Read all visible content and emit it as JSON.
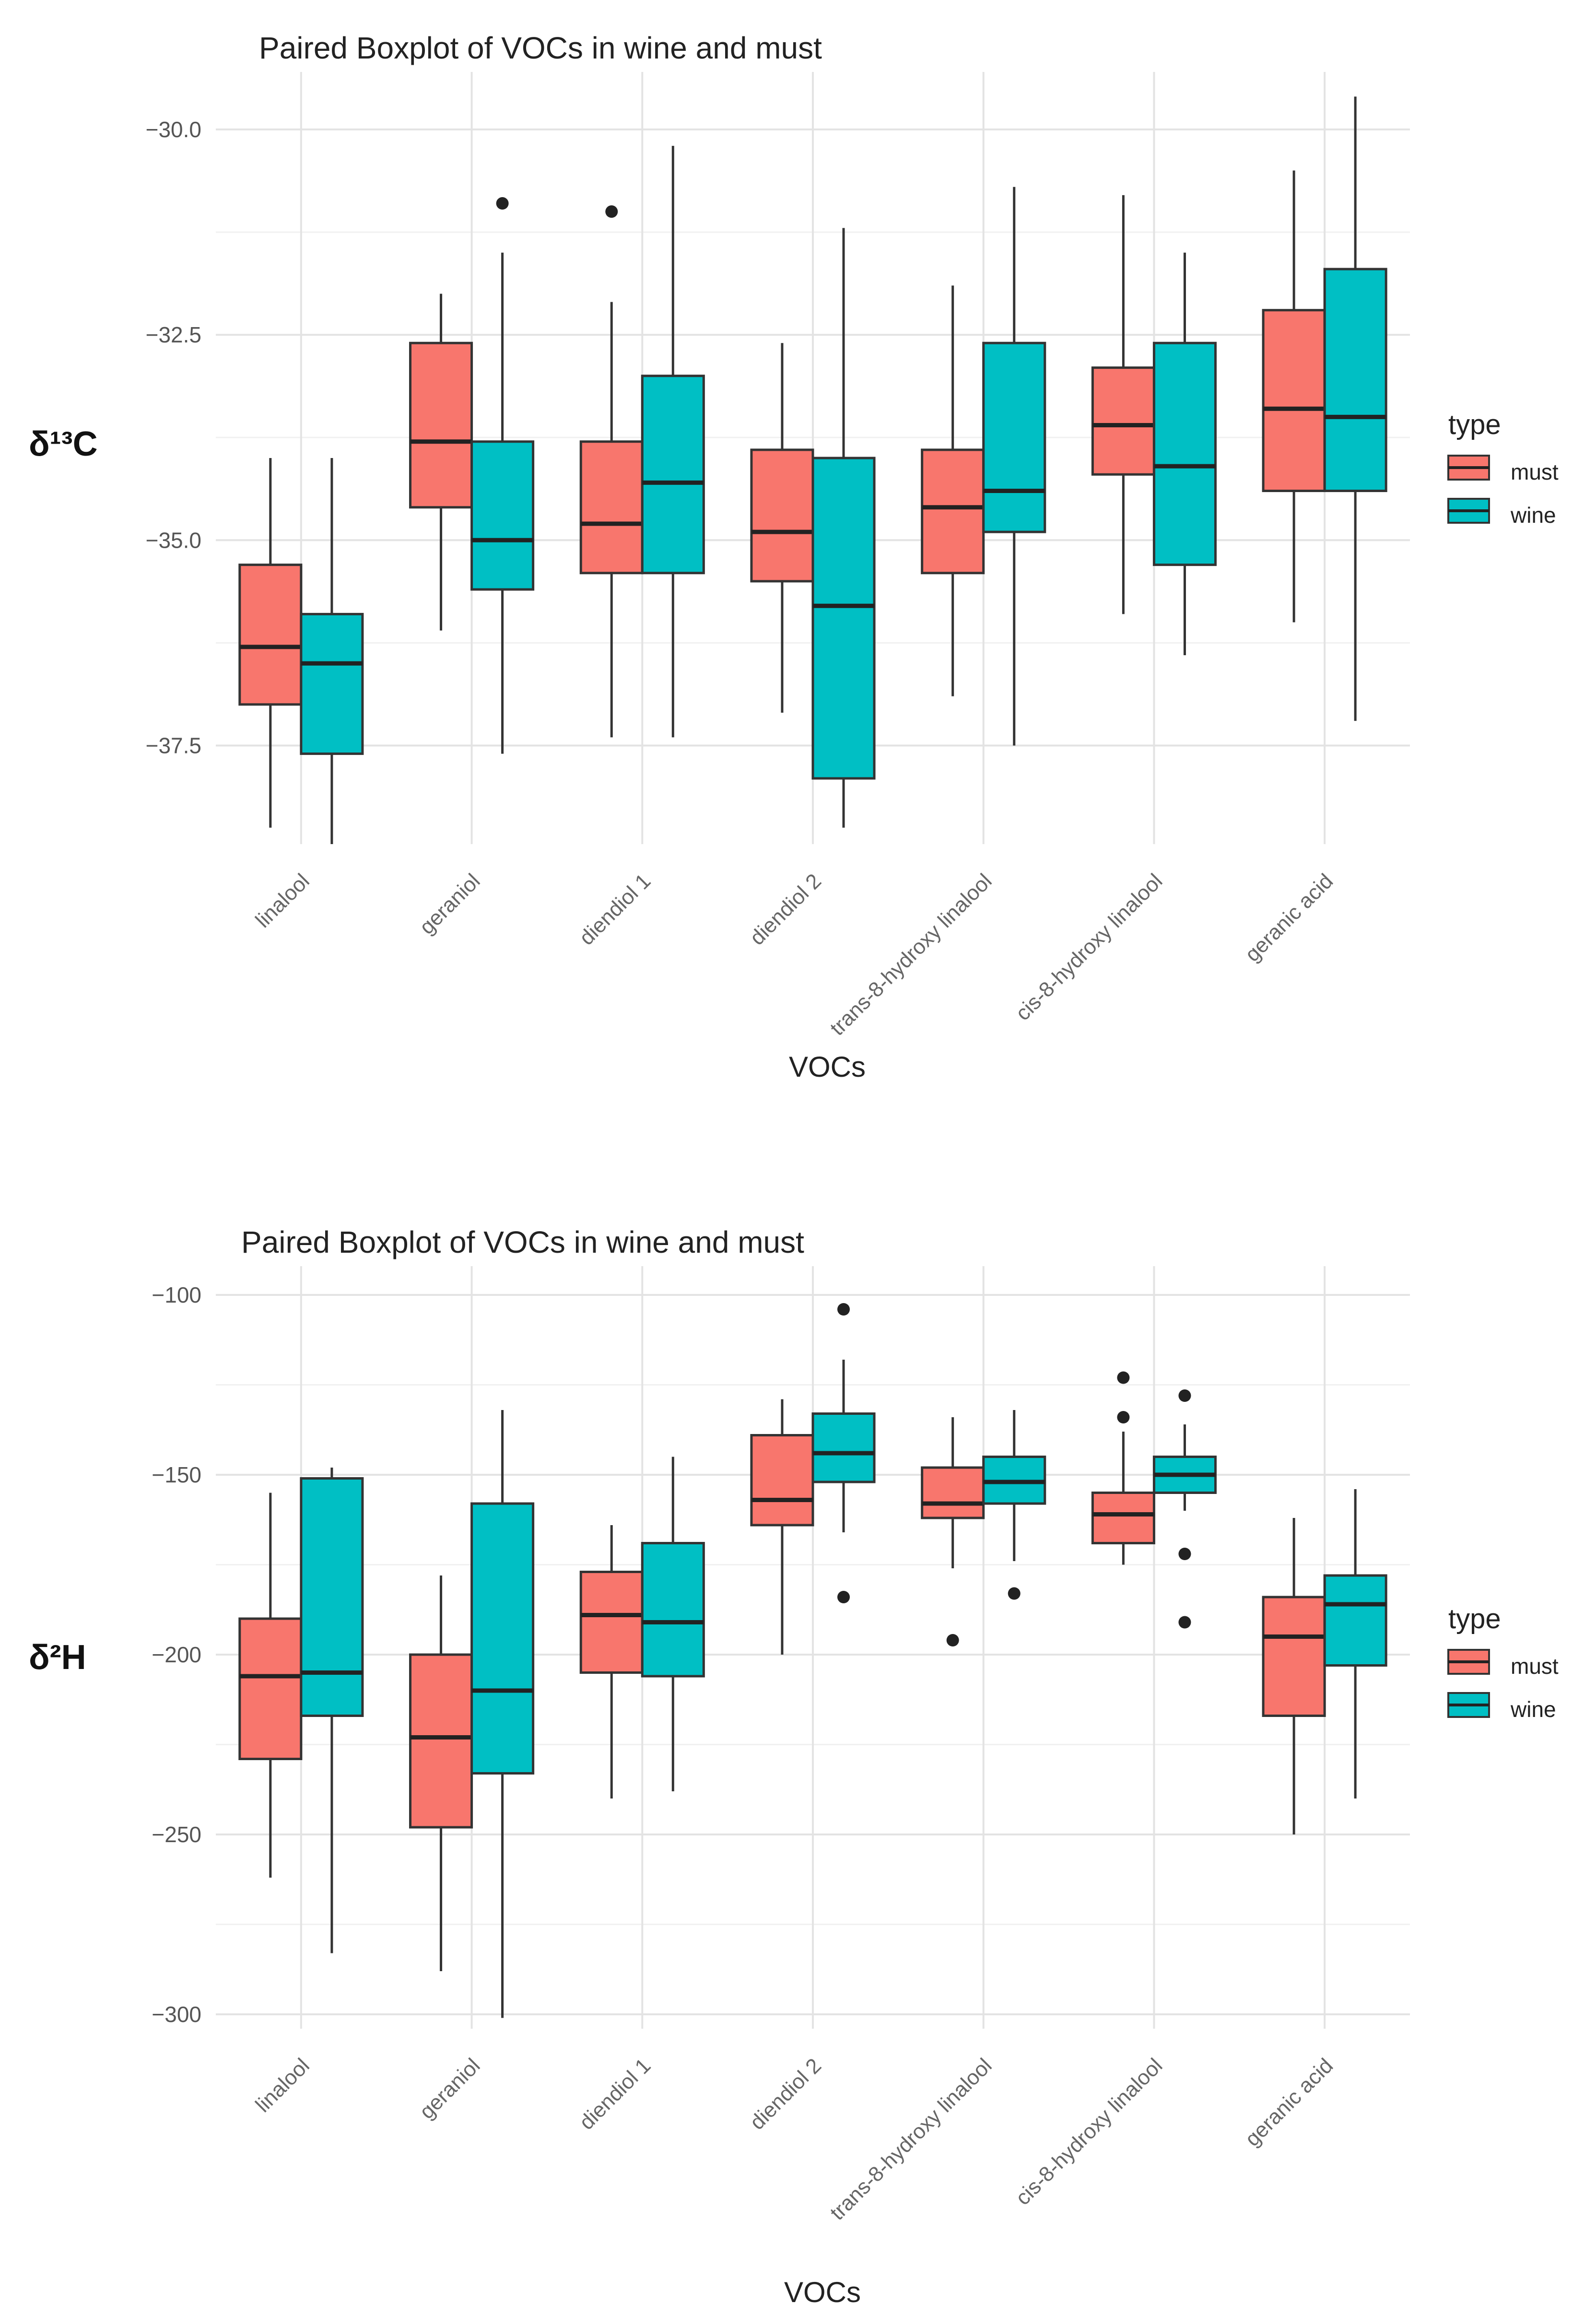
{
  "chart_data": [
    {
      "type": "boxplot",
      "title": "Paired Boxplot of VOCs in wine and must",
      "xlabel": "VOCs",
      "ylabel": "δ¹³C",
      "ylim": [
        -38.7,
        -29.3
      ],
      "yticks": [
        -30.0,
        -32.5,
        -35.0,
        -37.5
      ],
      "ytick_labels": [
        "−30.0",
        "−32.5",
        "−35.0",
        "−37.5"
      ],
      "categories": [
        "linalool",
        "geraniol",
        "diendiol 1",
        "diendiol 2",
        "trans-8-hydroxy linalool",
        "cis-8-hydroxy linalool",
        "geranic acid"
      ],
      "legend": {
        "title": "type",
        "entries": [
          "must",
          "wine"
        ],
        "position": "right"
      },
      "series": [
        {
          "name": "must",
          "color": "#F8766D",
          "boxes": [
            {
              "min": -38.5,
              "q1": -37.0,
              "median": -36.3,
              "q3": -35.3,
              "max": -34.0,
              "outliers": []
            },
            {
              "min": -36.1,
              "q1": -34.6,
              "median": -33.8,
              "q3": -32.6,
              "max": -32.0,
              "outliers": []
            },
            {
              "min": -37.4,
              "q1": -35.4,
              "median": -34.8,
              "q3": -33.8,
              "max": -32.1,
              "outliers": [
                -31.0
              ]
            },
            {
              "min": -37.1,
              "q1": -35.5,
              "median": -34.9,
              "q3": -33.9,
              "max": -32.6,
              "outliers": []
            },
            {
              "min": -36.9,
              "q1": -35.4,
              "median": -34.6,
              "q3": -33.9,
              "max": -31.9,
              "outliers": []
            },
            {
              "min": -35.9,
              "q1": -34.2,
              "median": -33.6,
              "q3": -32.9,
              "max": -30.8,
              "outliers": []
            },
            {
              "min": -36.0,
              "q1": -34.4,
              "median": -33.4,
              "q3": -32.2,
              "max": -30.5,
              "outliers": []
            }
          ]
        },
        {
          "name": "wine",
          "color": "#00BFC4",
          "boxes": [
            {
              "min": -38.7,
              "q1": -37.6,
              "median": -36.5,
              "q3": -35.9,
              "max": -34.0,
              "outliers": []
            },
            {
              "min": -37.6,
              "q1": -35.6,
              "median": -35.0,
              "q3": -33.8,
              "max": -31.5,
              "outliers": [
                -30.9
              ]
            },
            {
              "min": -37.4,
              "q1": -35.4,
              "median": -34.3,
              "q3": -33.0,
              "max": -30.2,
              "outliers": []
            },
            {
              "min": -38.5,
              "q1": -37.9,
              "median": -35.8,
              "q3": -34.0,
              "max": -31.2,
              "outliers": []
            },
            {
              "min": -37.5,
              "q1": -34.9,
              "median": -34.4,
              "q3": -32.6,
              "max": -30.7,
              "outliers": []
            },
            {
              "min": -36.4,
              "q1": -35.3,
              "median": -34.1,
              "q3": -32.6,
              "max": -31.5,
              "outliers": []
            },
            {
              "min": -37.2,
              "q1": -34.4,
              "median": -33.5,
              "q3": -31.7,
              "max": -29.6,
              "outliers": []
            }
          ]
        }
      ]
    },
    {
      "type": "boxplot",
      "title": "Paired Boxplot of VOCs in wine and must",
      "xlabel": "VOCs",
      "ylabel": "δ²H",
      "ylim": [
        -304,
        -92
      ],
      "yticks": [
        -100,
        -150,
        -200,
        -250,
        -300
      ],
      "ytick_labels": [
        "−100",
        "−150",
        "−200",
        "−250",
        "−300"
      ],
      "categories": [
        "linalool",
        "geraniol",
        "diendiol 1",
        "diendiol 2",
        "trans-8-hydroxy linalool",
        "cis-8-hydroxy linalool",
        "geranic acid"
      ],
      "legend": {
        "title": "type",
        "entries": [
          "must",
          "wine"
        ],
        "position": "right"
      },
      "series": [
        {
          "name": "must",
          "color": "#F8766D",
          "boxes": [
            {
              "min": -262,
              "q1": -229,
              "median": -206,
              "q3": -190,
              "max": -155,
              "outliers": []
            },
            {
              "min": -288,
              "q1": -248,
              "median": -223,
              "q3": -200,
              "max": -178,
              "outliers": []
            },
            {
              "min": -240,
              "q1": -205,
              "median": -189,
              "q3": -177,
              "max": -164,
              "outliers": []
            },
            {
              "min": -200,
              "q1": -164,
              "median": -157,
              "q3": -139,
              "max": -129,
              "outliers": []
            },
            {
              "min": -176,
              "q1": -162,
              "median": -158,
              "q3": -148,
              "max": -134,
              "outliers": [
                -196
              ]
            },
            {
              "min": -175,
              "q1": -169,
              "median": -161,
              "q3": -155,
              "max": -138,
              "outliers": [
                -123,
                -134
              ]
            },
            {
              "min": -250,
              "q1": -217,
              "median": -195,
              "q3": -184,
              "max": -162,
              "outliers": []
            }
          ]
        },
        {
          "name": "wine",
          "color": "#00BFC4",
          "boxes": [
            {
              "min": -283,
              "q1": -217,
              "median": -205,
              "q3": -151,
              "max": -148,
              "outliers": []
            },
            {
              "min": -301,
              "q1": -233,
              "median": -210,
              "q3": -158,
              "max": -132,
              "outliers": []
            },
            {
              "min": -238,
              "q1": -206,
              "median": -191,
              "q3": -169,
              "max": -145,
              "outliers": []
            },
            {
              "min": -166,
              "q1": -152,
              "median": -144,
              "q3": -133,
              "max": -118,
              "outliers": [
                -104,
                -184
              ]
            },
            {
              "min": -174,
              "q1": -158,
              "median": -152,
              "q3": -145,
              "max": -132,
              "outliers": [
                -183
              ]
            },
            {
              "min": -160,
              "q1": -155,
              "median": -150,
              "q3": -145,
              "max": -136,
              "outliers": [
                -128,
                -172,
                -191
              ]
            },
            {
              "min": -240,
              "q1": -203,
              "median": -186,
              "q3": -178,
              "max": -154,
              "outliers": []
            }
          ]
        }
      ]
    }
  ]
}
